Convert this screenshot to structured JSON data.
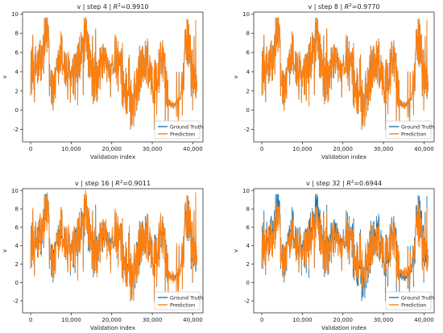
{
  "figure": {
    "colors": {
      "ground_truth": "#1f77b4",
      "prediction": "#ff7f0e"
    }
  },
  "chart_data": [
    {
      "type": "line",
      "title_prefix": "v | step 4 | ",
      "title_r2_label": "R",
      "title_r2_sup": "2",
      "title_r2_value": "=0.9910",
      "xlabel": "Validation index",
      "ylabel": "v",
      "xlim": [
        -2000,
        42500
      ],
      "ylim": [
        -3.3,
        10.2
      ],
      "xticks": [
        0,
        10000,
        20000,
        30000,
        40000
      ],
      "xtick_labels": [
        "0",
        "10,000",
        "20,000",
        "30,000",
        "40,000"
      ],
      "yticks": [
        -2,
        0,
        2,
        4,
        6,
        8,
        10
      ],
      "ytick_labels": [
        "-2",
        "0",
        "2",
        "4",
        "6",
        "8",
        "10"
      ],
      "legend": {
        "placement": "lower-right",
        "entries": [
          "Ground Truth",
          "Prediction"
        ]
      },
      "series": [
        {
          "name": "Ground Truth",
          "color": "#1f77b4"
        },
        {
          "name": "Prediction",
          "color": "#ff7f0e"
        }
      ],
      "r2": 0.991
    },
    {
      "type": "line",
      "title_prefix": "v | step 8 | ",
      "title_r2_label": "R",
      "title_r2_sup": "2",
      "title_r2_value": "=0.9770",
      "xlabel": "Validation index",
      "ylabel": "v",
      "xlim": [
        -2000,
        42500
      ],
      "ylim": [
        -3.3,
        10.2
      ],
      "xticks": [
        0,
        10000,
        20000,
        30000,
        40000
      ],
      "xtick_labels": [
        "0",
        "10,000",
        "20,000",
        "30,000",
        "40,000"
      ],
      "yticks": [
        -2,
        0,
        2,
        4,
        6,
        8,
        10
      ],
      "ytick_labels": [
        "-2",
        "0",
        "2",
        "4",
        "6",
        "8",
        "10"
      ],
      "legend": {
        "placement": "lower-right",
        "entries": [
          "Ground Truth",
          "Prediction"
        ]
      },
      "series": [
        {
          "name": "Ground Truth",
          "color": "#1f77b4"
        },
        {
          "name": "Prediction",
          "color": "#ff7f0e"
        }
      ],
      "r2": 0.977
    },
    {
      "type": "line",
      "title_prefix": "v | step 16 | ",
      "title_r2_label": "R",
      "title_r2_sup": "2",
      "title_r2_value": "=0.9011",
      "xlabel": "Validation index",
      "ylabel": "v",
      "xlim": [
        -2000,
        42500
      ],
      "ylim": [
        -3.3,
        10.2
      ],
      "xticks": [
        0,
        10000,
        20000,
        30000,
        40000
      ],
      "xtick_labels": [
        "0",
        "10,000",
        "20,000",
        "30,000",
        "40,000"
      ],
      "yticks": [
        -2,
        0,
        2,
        4,
        6,
        8,
        10
      ],
      "ytick_labels": [
        "-2",
        "0",
        "2",
        "4",
        "6",
        "8",
        "10"
      ],
      "legend": {
        "placement": "lower-right",
        "entries": [
          "Ground Truth",
          "Prediction"
        ]
      },
      "series": [
        {
          "name": "Ground Truth",
          "color": "#1f77b4"
        },
        {
          "name": "Prediction",
          "color": "#ff7f0e"
        }
      ],
      "r2": 0.9011
    },
    {
      "type": "line",
      "title_prefix": "v | step 32 | ",
      "title_r2_label": "R",
      "title_r2_sup": "2",
      "title_r2_value": "=0.6944",
      "xlabel": "Validation index",
      "ylabel": "v",
      "xlim": [
        -2000,
        42500
      ],
      "ylim": [
        -3.3,
        10.2
      ],
      "xticks": [
        0,
        10000,
        20000,
        30000,
        40000
      ],
      "xtick_labels": [
        "0",
        "10,000",
        "20,000",
        "30,000",
        "40,000"
      ],
      "yticks": [
        -2,
        0,
        2,
        4,
        6,
        8,
        10
      ],
      "ytick_labels": [
        "-2",
        "0",
        "2",
        "4",
        "6",
        "8",
        "10"
      ],
      "legend": {
        "placement": "lower-right",
        "entries": [
          "Ground Truth",
          "Prediction"
        ]
      },
      "series": [
        {
          "name": "Ground Truth",
          "color": "#1f77b4"
        },
        {
          "name": "Prediction",
          "color": "#ff7f0e"
        }
      ],
      "r2": 0.6944
    }
  ]
}
